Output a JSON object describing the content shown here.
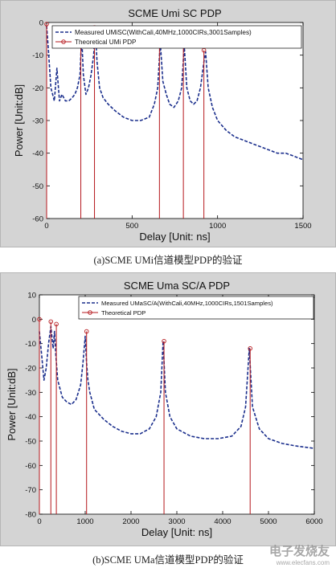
{
  "captions": [
    "(a)SCME UMi信道模型PDP的验证",
    "(b)SCME UMa信道模型PDP的验证"
  ],
  "watermark": {
    "text": "电子发烧友",
    "sub": "www.elecfans.com"
  },
  "chart_data": [
    {
      "type": "line",
      "title": "SCME Umi SC PDP",
      "xlabel": "Delay [Unit: ns]",
      "ylabel": "Power [Unit:dB]",
      "xlim": [
        0,
        1500
      ],
      "ylim": [
        -60,
        0
      ],
      "xticks": [
        0,
        500,
        1000,
        1500
      ],
      "yticks": [
        -60,
        -50,
        -40,
        -30,
        -20,
        -10,
        0
      ],
      "grid": false,
      "legend_position": "top-left",
      "series": [
        {
          "name": "Measured UMiSC(WithCali,40MHz,1000CIRs,3001Samples)",
          "style": "dashed",
          "color": "#1a2e8c",
          "x": [
            0,
            10,
            25,
            45,
            60,
            75,
            90,
            110,
            130,
            150,
            165,
            180,
            195,
            205,
            215,
            230,
            245,
            260,
            275,
            285,
            295,
            310,
            330,
            360,
            400,
            450,
            500,
            550,
            600,
            630,
            650,
            665,
            680,
            700,
            720,
            745,
            770,
            790,
            805,
            820,
            840,
            860,
            880,
            900,
            920,
            930,
            945,
            970,
            1000,
            1050,
            1100,
            1150,
            1200,
            1250,
            1300,
            1350,
            1400,
            1450,
            1500
          ],
          "y": [
            -1,
            -8,
            -20,
            -24,
            -14,
            -24,
            -22,
            -24,
            -24,
            -23,
            -22,
            -20,
            -16,
            -4,
            -16,
            -22,
            -20,
            -16,
            -10,
            -2,
            -12,
            -20,
            -23,
            -25,
            -27,
            -29,
            -30,
            -30,
            -29,
            -25,
            -20,
            -6,
            -18,
            -22,
            -25,
            -26,
            -24,
            -20,
            -7,
            -20,
            -24,
            -25,
            -24,
            -20,
            -12,
            -9,
            -20,
            -26,
            -30,
            -33,
            -35,
            -36,
            -37,
            -38,
            -39,
            -40,
            -40,
            -41,
            -42
          ]
        },
        {
          "name": "Theoretical UMi PDP",
          "style": "stem",
          "color": "#b5171c",
          "x": [
            0,
            200,
            280,
            660,
            800,
            920
          ],
          "y": [
            -0.5,
            -2.5,
            -1.5,
            -4.5,
            -6,
            -8.5
          ]
        }
      ]
    },
    {
      "type": "line",
      "title": "SCME Uma SC/A PDP",
      "xlabel": "Delay [Unit: ns]",
      "ylabel": "Power [Unit:dB]",
      "xlim": [
        0,
        6000
      ],
      "ylim": [
        -80,
        10
      ],
      "xticks": [
        0,
        1000,
        2000,
        3000,
        4000,
        5000,
        6000
      ],
      "yticks": [
        -80,
        -70,
        -60,
        -50,
        -40,
        -30,
        -20,
        -10,
        0,
        10
      ],
      "grid": false,
      "legend_position": "top-right",
      "series": [
        {
          "name": "Measured UMaSC/A(WithCali,40MHz,1000CIRs,1501Samples)",
          "style": "dashed",
          "color": "#1a2e8c",
          "x": [
            0,
            50,
            100,
            150,
            200,
            250,
            300,
            330,
            360,
            400,
            500,
            600,
            700,
            800,
            900,
            950,
            1000,
            1030,
            1060,
            1100,
            1200,
            1400,
            1600,
            1800,
            2000,
            2200,
            2400,
            2550,
            2650,
            2700,
            2750,
            2850,
            3000,
            3300,
            3600,
            3900,
            4200,
            4400,
            4500,
            4580,
            4650,
            4800,
            5000,
            5300,
            5600,
            6000
          ],
          "y": [
            -5,
            -15,
            -25,
            -20,
            -10,
            -3,
            -12,
            -5,
            -15,
            -25,
            -32,
            -34,
            -35,
            -33,
            -27,
            -18,
            -7,
            -18,
            -25,
            -30,
            -37,
            -41,
            -44,
            -46,
            -47,
            -47,
            -45,
            -40,
            -30,
            -9,
            -30,
            -40,
            -45,
            -48,
            -49,
            -49,
            -48,
            -44,
            -36,
            -12,
            -36,
            -45,
            -49,
            -51,
            -52,
            -53
          ]
        },
        {
          "name": "Theoretical PDP",
          "style": "stem",
          "color": "#b5171c",
          "x": [
            0,
            250,
            370,
            1030,
            2720,
            4600
          ],
          "y": [
            0,
            -1,
            -2,
            -5,
            -9,
            -12
          ]
        }
      ]
    }
  ]
}
